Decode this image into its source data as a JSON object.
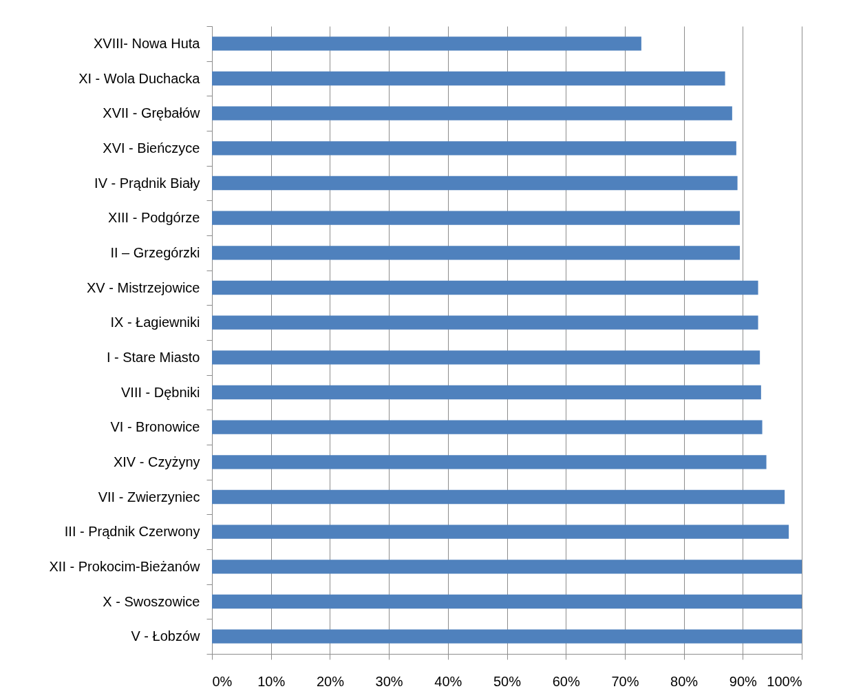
{
  "chart_data": {
    "type": "bar",
    "orientation": "horizontal",
    "categories": [
      "XVIII- Nowa Huta",
      "XI - Wola Duchacka",
      "XVII - Grębałów",
      "XVI - Bieńczyce",
      "IV - Prądnik Biały",
      "XIII - Podgórze",
      "II – Grzegórzki",
      "XV - Mistrzejowice",
      "IX - Łagiewniki",
      "I - Stare Miasto",
      "VIII - Dębniki",
      "VI - Bronowice",
      "XIV - Czyżyny",
      "VII - Zwierzyniec",
      "III - Prądnik Czerwony",
      "XII - Prokocim-Bieżanów",
      "X - Swoszowice",
      "V - Łobzów"
    ],
    "values": [
      72.8,
      87.0,
      88.2,
      88.9,
      89.1,
      89.5,
      89.5,
      92.6,
      92.6,
      92.9,
      93.1,
      93.3,
      94.0,
      97.1,
      97.8,
      100,
      100,
      100
    ],
    "color": "#4f81bd",
    "xlim": [
      0,
      100
    ],
    "xticks": [
      {
        "value": 0,
        "label": "0%"
      },
      {
        "value": 10,
        "label": "10%"
      },
      {
        "value": 20,
        "label": "20%"
      },
      {
        "value": 30,
        "label": "30%"
      },
      {
        "value": 40,
        "label": "40%"
      },
      {
        "value": 50,
        "label": "50%"
      },
      {
        "value": 60,
        "label": "60%"
      },
      {
        "value": 70,
        "label": "70%"
      },
      {
        "value": 80,
        "label": "80%"
      },
      {
        "value": 90,
        "label": "90%"
      },
      {
        "value": 100,
        "label": "100%"
      }
    ],
    "grid": "x"
  }
}
